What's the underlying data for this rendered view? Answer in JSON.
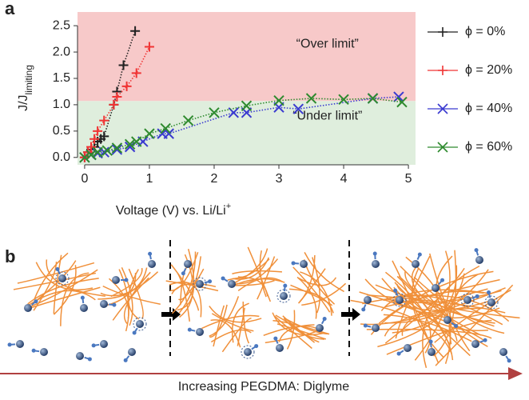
{
  "panel_labels": {
    "a": "a",
    "b": "b"
  },
  "chart_data": {
    "type": "line",
    "xlabel": {
      "main": "Voltage (V) vs. Li/Li",
      "sup": "+"
    },
    "ylabel": {
      "main": "J/J",
      "sub": "limiting"
    },
    "xlim": [
      -0.11,
      5.11
    ],
    "ylim": [
      -0.14,
      2.76
    ],
    "xticks": [
      0,
      1,
      2,
      3,
      4,
      5
    ],
    "yticks": [
      {
        "value": 0,
        "label": "0.0"
      },
      0.5,
      {
        "value": 1,
        "label": "1.0"
      },
      1.5,
      {
        "value": 2,
        "label": "2.0"
      },
      2.5
    ],
    "limit": 1.07,
    "over_color": "#f7c9c9",
    "under_color": "#dfeedd",
    "annotations": [
      {
        "text": "“Over limit”",
        "x": 3.75,
        "y": 2.15
      },
      {
        "text": "“Under limit”",
        "x": 3.75,
        "y": 0.78
      }
    ],
    "series": [
      {
        "name": "ϕ = 0%",
        "color": "#222222",
        "marker": "plus",
        "x": [
          0,
          0.05,
          0.1,
          0.15,
          0.2,
          0.25,
          0.3,
          0.45,
          0.5,
          0.6,
          0.78
        ],
        "values": [
          0,
          0.1,
          0.15,
          0.2,
          0.3,
          0.35,
          0.4,
          1.0,
          1.25,
          1.75,
          2.4
        ]
      },
      {
        "name": "ϕ = 20%",
        "color": "#f03434",
        "marker": "plus",
        "x": [
          0,
          0.05,
          0.1,
          0.15,
          0.2,
          0.3,
          0.45,
          0.5,
          0.65,
          0.8,
          1.0
        ],
        "values": [
          0,
          0.1,
          0.2,
          0.35,
          0.5,
          0.7,
          1.0,
          1.15,
          1.35,
          1.6,
          2.1
        ]
      },
      {
        "name": "ϕ = 40%",
        "color": "#3a3ad0",
        "marker": "x",
        "x": [
          0,
          0.1,
          0.2,
          0.3,
          0.5,
          0.7,
          0.9,
          1.2,
          1.3,
          2.3,
          2.5,
          3.0,
          3.3,
          4.45,
          4.85
        ],
        "values": [
          0,
          0.05,
          0.08,
          0.1,
          0.15,
          0.2,
          0.3,
          0.45,
          0.45,
          0.85,
          0.85,
          0.95,
          0.92,
          1.12,
          1.15
        ]
      },
      {
        "name": "ϕ = 60%",
        "color": "#2e8a2e",
        "marker": "x",
        "x": [
          0,
          0.1,
          0.2,
          0.35,
          0.5,
          0.7,
          0.8,
          1.0,
          1.25,
          1.6,
          2.0,
          2.5,
          3.0,
          3.5,
          4.0,
          4.45,
          4.9
        ],
        "values": [
          0,
          0.05,
          0.1,
          0.13,
          0.18,
          0.25,
          0.3,
          0.45,
          0.55,
          0.7,
          0.85,
          0.98,
          1.08,
          1.12,
          1.1,
          1.12,
          1.05
        ]
      }
    ]
  },
  "diagram": {
    "caption": "Increasing PEGDMA: Diglyme"
  }
}
